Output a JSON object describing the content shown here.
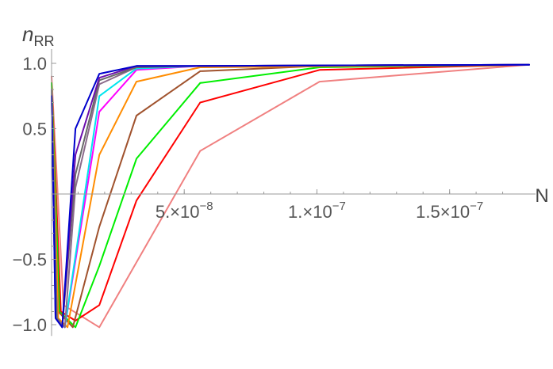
{
  "chart_data": {
    "type": "line",
    "xlabel": "N",
    "ylabel": "n_RR",
    "ylabel_main": "n",
    "ylabel_sub": "RR",
    "xlim": [
      0,
      1.8e-07
    ],
    "ylim": [
      -1.05,
      1.0
    ],
    "x_ticks": [
      {
        "value": 5e-08,
        "mantissa": "5.",
        "exp": "-8"
      },
      {
        "value": 1e-07,
        "mantissa": "1.",
        "exp": "-7"
      },
      {
        "value": 1.5e-07,
        "mantissa": "1.5",
        "exp": "-7"
      }
    ],
    "y_ticks": [
      {
        "value": 1.0,
        "label": "1.0"
      },
      {
        "value": 0.5,
        "label": "0.5"
      },
      {
        "value": -0.5,
        "label": "−0.5"
      },
      {
        "value": -1.0,
        "label": "−1.0"
      }
    ],
    "series": [
      {
        "color": "#f08080",
        "x": [
          0,
          4.5e-09,
          1.8e-08,
          5.6e-08,
          1.01e-07,
          1.8e-07
        ],
        "y": [
          0.9,
          -0.85,
          -1.02,
          0.33,
          0.86,
          0.99
        ]
      },
      {
        "color": "#ff0000",
        "x": [
          0,
          3.5e-09,
          9e-09,
          1.8e-08,
          3.2e-08,
          5.6e-08,
          1.01e-07,
          1.8e-07
        ],
        "y": [
          0.85,
          -0.9,
          -0.97,
          -0.85,
          -0.05,
          0.7,
          0.95,
          0.99
        ]
      },
      {
        "color": "#00ee00",
        "x": [
          0,
          3e-09,
          9e-09,
          1.8e-08,
          3.2e-08,
          5.6e-08,
          1.01e-07,
          1.8e-07
        ],
        "y": [
          0.85,
          -0.9,
          -1.02,
          -0.55,
          0.27,
          0.85,
          0.97,
          0.99
        ]
      },
      {
        "color": "#a0522d",
        "x": [
          0,
          2.5e-09,
          8e-09,
          1.8e-08,
          3.2e-08,
          5.6e-08,
          1.01e-07,
          1.8e-07
        ],
        "y": [
          0.8,
          -0.9,
          -1.02,
          -0.25,
          0.6,
          0.94,
          0.98,
          0.99
        ]
      },
      {
        "color": "#ff8c00",
        "x": [
          0,
          2.5e-09,
          6e-09,
          1.8e-08,
          3.2e-08,
          5.6e-08,
          1.8e-07
        ],
        "y": [
          0.8,
          -0.95,
          -1.02,
          0.3,
          0.86,
          0.97,
          0.99
        ]
      },
      {
        "color": "#ff00ff",
        "x": [
          0,
          2e-09,
          5e-09,
          1.8e-08,
          3.2e-08,
          5.6e-08,
          1.8e-07
        ],
        "y": [
          0.8,
          -0.95,
          -1.02,
          0.63,
          0.95,
          0.98,
          0.99
        ]
      },
      {
        "color": "#00e5ee",
        "x": [
          0,
          2e-09,
          5e-09,
          1.8e-08,
          3.2e-08,
          5.6e-08,
          1.8e-07
        ],
        "y": [
          0.8,
          -0.95,
          -1.02,
          0.75,
          0.96,
          0.98,
          0.99
        ]
      },
      {
        "color": "#8b6b8b",
        "x": [
          0,
          2e-09,
          5e-09,
          9e-09,
          1.8e-08,
          3.2e-08,
          5.6e-08,
          1.8e-07
        ],
        "y": [
          0.8,
          -0.95,
          -1.02,
          0.05,
          0.84,
          0.97,
          0.98,
          0.99
        ]
      },
      {
        "color": "#696969",
        "x": [
          0,
          2e-09,
          4e-09,
          9e-09,
          1.8e-08,
          3.2e-08,
          5.6e-08,
          1.8e-07
        ],
        "y": [
          0.8,
          -0.95,
          -1.02,
          0.15,
          0.87,
          0.97,
          0.98,
          0.99
        ]
      },
      {
        "color": "#6a0dad",
        "x": [
          0,
          1.5e-09,
          4e-09,
          9e-09,
          1.8e-08,
          3.2e-08,
          5.6e-08,
          1.8e-07
        ],
        "y": [
          0.75,
          -0.95,
          -1.02,
          0.3,
          0.89,
          0.98,
          0.98,
          0.99
        ]
      },
      {
        "color": "#0000cd",
        "x": [
          0,
          1.5e-09,
          4e-09,
          9e-09,
          1.8e-08,
          3.2e-08,
          5.6e-08,
          1.8e-07
        ],
        "y": [
          0.75,
          -0.95,
          -1.02,
          0.5,
          0.92,
          0.98,
          0.98,
          0.99
        ]
      }
    ]
  }
}
